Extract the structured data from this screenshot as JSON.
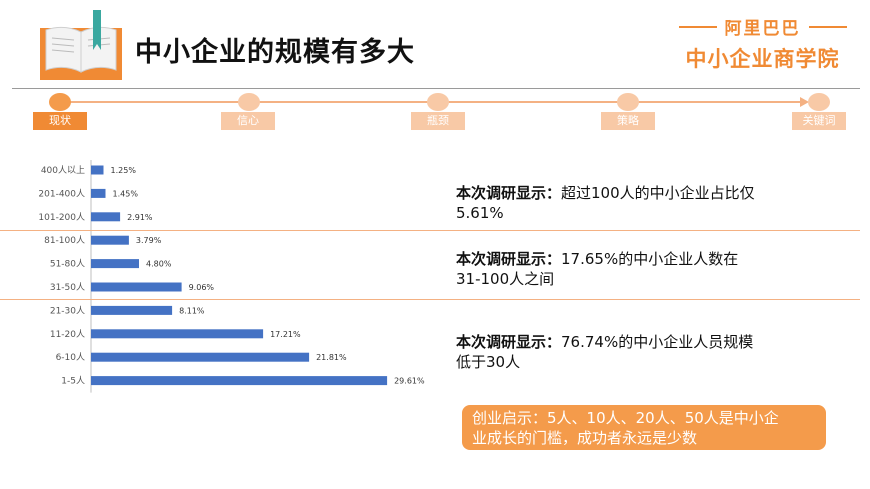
{
  "header": {
    "title": "中小企业的规模有多大",
    "brand_top": "阿里巴巴",
    "brand_bottom": "中小企业商学院"
  },
  "steps": [
    {
      "label": "现状",
      "active": true
    },
    {
      "label": "信心",
      "active": false
    },
    {
      "label": "瓶颈",
      "active": false
    },
    {
      "label": "策略",
      "active": false
    },
    {
      "label": "关键词",
      "active": false
    }
  ],
  "chart_data": {
    "type": "bar",
    "orientation": "horizontal",
    "categories": [
      "400人以上",
      "201-400人",
      "101-200人",
      "81-100人",
      "51-80人",
      "31-50人",
      "21-30人",
      "11-20人",
      "6-10人",
      "1-5人"
    ],
    "values": [
      1.25,
      1.45,
      2.91,
      3.79,
      4.8,
      9.06,
      8.11,
      17.21,
      21.81,
      29.61
    ],
    "value_labels": [
      "1.25%",
      "1.45%",
      "2.91%",
      "3.79%",
      "4.80%",
      "9.06%",
      "8.11%",
      "17.21%",
      "21.81%",
      "29.61%"
    ],
    "bar_color": "#4472c4",
    "xlim": [
      0,
      30
    ],
    "grid": false
  },
  "findings": [
    {
      "prefix": "本次调研显示：",
      "line1": "超过100人的中小企业占比仅",
      "line2": "5.61%"
    },
    {
      "prefix": "本次调研显示：",
      "line1": "17.65%的中小企业人数在",
      "line2": "31-100人之间"
    },
    {
      "prefix": "本次调研显示：",
      "line1": "76.74%的中小企业人员规模",
      "line2": "低于30人"
    }
  ],
  "callout": {
    "line1": "创业启示：5人、10人、20人、50人是中小企",
    "line2": "业成长的门槛，成功者永远是少数"
  }
}
